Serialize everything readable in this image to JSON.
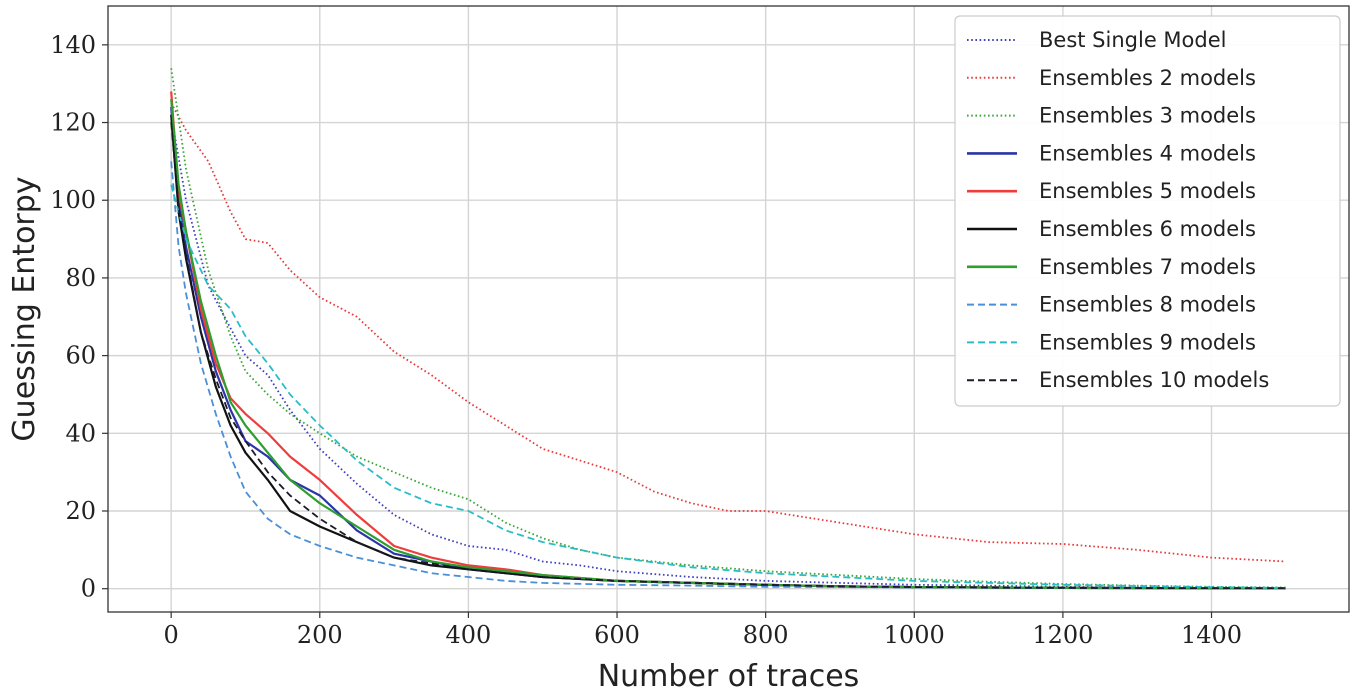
{
  "chart_data": {
    "type": "line",
    "title": "",
    "xlabel": "Number of traces",
    "ylabel": "Guessing Entorpy",
    "xlim": [
      -85,
      1585
    ],
    "ylim": [
      -6,
      150
    ],
    "xticks": [
      0,
      200,
      400,
      600,
      800,
      1000,
      1200,
      1400
    ],
    "yticks": [
      0,
      20,
      40,
      60,
      80,
      100,
      120,
      140
    ],
    "grid": true,
    "legend_position": "top-right",
    "series": [
      {
        "name": "Best Single Model",
        "color": "#3f3fbf",
        "style": "dotted",
        "x": [
          0,
          20,
          50,
          80,
          100,
          130,
          160,
          200,
          250,
          300,
          350,
          400,
          450,
          500,
          550,
          600,
          700,
          800,
          900,
          1000,
          1100,
          1200,
          1300,
          1400,
          1500
        ],
        "y": [
          122,
          100,
          78,
          67,
          60,
          55,
          46,
          36,
          27,
          19,
          14,
          11,
          10,
          7,
          6,
          4.5,
          3,
          2,
          1.5,
          1,
          0.8,
          0.5,
          0.3,
          0.2,
          0.1
        ]
      },
      {
        "name": "Ensembles 2 models",
        "color": "#e83a3a",
        "style": "dotted",
        "x": [
          0,
          20,
          50,
          80,
          100,
          130,
          160,
          200,
          250,
          300,
          350,
          400,
          450,
          500,
          550,
          600,
          650,
          700,
          750,
          800,
          900,
          1000,
          1100,
          1200,
          1300,
          1400,
          1500
        ],
        "y": [
          125,
          118,
          110,
          97,
          90,
          89,
          82,
          75,
          70,
          61,
          55,
          48,
          42,
          36,
          33,
          30,
          25,
          22,
          20,
          20,
          17,
          14,
          12,
          11.5,
          10,
          8,
          7
        ]
      },
      {
        "name": "Ensembles 3 models",
        "color": "#3aa63a",
        "style": "dotted",
        "x": [
          0,
          20,
          50,
          80,
          100,
          130,
          160,
          200,
          250,
          300,
          350,
          400,
          450,
          500,
          550,
          600,
          700,
          800,
          900,
          1000,
          1100,
          1200,
          1300,
          1400,
          1500
        ],
        "y": [
          134,
          108,
          82,
          65,
          56,
          50,
          45,
          40,
          34,
          30,
          26,
          23,
          17,
          13,
          10,
          8,
          6,
          4.5,
          3.5,
          2.5,
          1.8,
          1.2,
          0.8,
          0.5,
          0.3
        ]
      },
      {
        "name": "Ensembles 4 models",
        "color": "#2b35a8",
        "style": "solid",
        "x": [
          0,
          10,
          20,
          40,
          60,
          80,
          100,
          130,
          160,
          200,
          250,
          300,
          350,
          400,
          450,
          500,
          600,
          700,
          800,
          900,
          1000,
          1200,
          1500
        ],
        "y": [
          124,
          100,
          88,
          70,
          56,
          46,
          38,
          34,
          28,
          24,
          15,
          9,
          7,
          5,
          4,
          3,
          2,
          1.5,
          1,
          0.6,
          0.4,
          0.2,
          0.1
        ]
      },
      {
        "name": "Ensembles 5 models",
        "color": "#f03c3c",
        "style": "solid",
        "x": [
          0,
          10,
          20,
          40,
          60,
          80,
          100,
          130,
          160,
          200,
          250,
          300,
          350,
          400,
          450,
          500,
          600,
          700,
          800,
          900,
          1000,
          1200,
          1500
        ],
        "y": [
          128,
          102,
          92,
          72,
          58,
          49,
          45,
          40,
          34,
          28,
          19,
          11,
          8,
          6,
          5,
          3.5,
          2,
          1.5,
          1,
          0.6,
          0.4,
          0.2,
          0.1
        ]
      },
      {
        "name": "Ensembles 6 models",
        "color": "#111111",
        "style": "solid",
        "x": [
          0,
          10,
          20,
          40,
          60,
          80,
          100,
          130,
          160,
          200,
          250,
          300,
          350,
          400,
          450,
          500,
          600,
          700,
          800,
          900,
          1000,
          1200,
          1500
        ],
        "y": [
          122,
          97,
          85,
          66,
          52,
          42,
          35,
          28,
          20,
          16,
          12,
          8,
          6,
          5,
          4,
          3,
          2,
          1.5,
          1,
          0.6,
          0.4,
          0.2,
          0.1
        ]
      },
      {
        "name": "Ensembles 7 models",
        "color": "#2e9e2e",
        "style": "solid",
        "x": [
          0,
          10,
          20,
          40,
          60,
          80,
          100,
          130,
          160,
          200,
          250,
          300,
          350,
          400,
          450,
          500,
          600,
          700,
          800,
          900,
          1000,
          1200,
          1500
        ],
        "y": [
          126,
          104,
          92,
          74,
          60,
          48,
          42,
          35,
          28,
          22,
          16,
          10,
          7,
          5.5,
          4.5,
          3.5,
          2,
          1.5,
          1,
          0.6,
          0.4,
          0.2,
          0.1
        ]
      },
      {
        "name": "Ensembles 8 models",
        "color": "#4a8fd8",
        "style": "dashed",
        "x": [
          0,
          10,
          20,
          40,
          60,
          80,
          100,
          130,
          160,
          200,
          250,
          300,
          350,
          400,
          450,
          500,
          600,
          700,
          800,
          900,
          1000,
          1200,
          1500
        ],
        "y": [
          110,
          88,
          76,
          58,
          45,
          34,
          25,
          18,
          14,
          11,
          8,
          6,
          4,
          3,
          2,
          1.5,
          1,
          0.8,
          0.5,
          0.4,
          0.3,
          0.2,
          0.1
        ]
      },
      {
        "name": "Ensembles 9 models",
        "color": "#2bbcc8",
        "style": "dashed",
        "x": [
          0,
          20,
          50,
          80,
          100,
          130,
          160,
          200,
          250,
          300,
          350,
          400,
          450,
          500,
          550,
          600,
          700,
          800,
          900,
          1000,
          1100,
          1200,
          1300,
          1400,
          1500
        ],
        "y": [
          104,
          90,
          78,
          72,
          65,
          58,
          50,
          42,
          33,
          26,
          22,
          20,
          15,
          12,
          10,
          8,
          5.5,
          4,
          3,
          2,
          1.5,
          1,
          0.7,
          0.4,
          0.2
        ]
      },
      {
        "name": "Ensembles 10 models",
        "color": "#1a1a2a",
        "style": "dashed",
        "x": [
          0,
          10,
          20,
          40,
          60,
          80,
          100,
          130,
          160,
          200,
          250,
          300,
          350,
          400,
          450,
          500,
          600,
          700,
          800,
          900,
          1000,
          1200,
          1500
        ],
        "y": [
          120,
          98,
          86,
          66,
          54,
          44,
          38,
          30,
          24,
          18,
          12,
          8,
          6.5,
          5,
          4,
          3,
          2,
          1.5,
          1,
          0.6,
          0.4,
          0.2,
          0.1
        ]
      }
    ]
  }
}
